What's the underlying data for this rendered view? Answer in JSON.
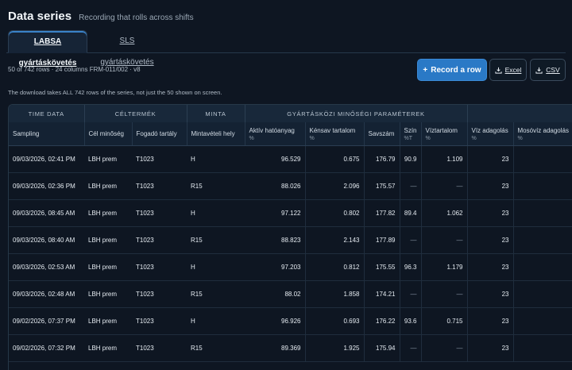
{
  "header": {
    "title": "Data series",
    "subtitle": "Recording that rolls across shifts"
  },
  "tabs": [
    {
      "label": "LABSA gyártáskövetés",
      "active": true
    },
    {
      "label": "SLS gyártáskövetés",
      "active": false
    }
  ],
  "meta": {
    "summary": "50 of 742 rows · 24 columns  FRM-011/002 · v8"
  },
  "note": "The download takes ALL 742 rows of the series, not just the 50 shown on screen.",
  "actions": {
    "record_label": "Record a row",
    "record_icon": "plus-icon",
    "excel_label": "Excel",
    "csv_label": "CSV",
    "download_icon": "download-icon"
  },
  "table": {
    "groups": [
      "TIME DATA",
      "CÉLTERMÉK",
      "MINTA",
      "GYÁRTÁSKÖZI MINŐSÉGI PARAMÉTEREK"
    ],
    "columns": [
      {
        "label": "Sampling",
        "unit": ""
      },
      {
        "label": "Cél minőség",
        "unit": ""
      },
      {
        "label": "Fogadó tartály",
        "unit": ""
      },
      {
        "label": "Mintavételi hely",
        "unit": ""
      },
      {
        "label": "Aktív hatóanyag",
        "unit": "%"
      },
      {
        "label": "Kénsav tartalom",
        "unit": "%"
      },
      {
        "label": "Savszám",
        "unit": ""
      },
      {
        "label": "Szín",
        "unit": "%T"
      },
      {
        "label": "Víztartalom",
        "unit": "%"
      },
      {
        "label": "Víz adagolás",
        "unit": "%"
      },
      {
        "label": "Mosóvíz adagolás",
        "unit": "%"
      }
    ],
    "rows": [
      [
        "09/03/2026, 02:41 PM",
        "LBH prem",
        "T1023",
        "H",
        "96.529",
        "0.675",
        "176.79",
        "90.9",
        "1.109",
        "23",
        ""
      ],
      [
        "09/03/2026, 02:36 PM",
        "LBH prem",
        "T1023",
        "R15",
        "88.026",
        "2.096",
        "175.57",
        "—",
        "—",
        "23",
        ""
      ],
      [
        "09/03/2026, 08:45 AM",
        "LBH prem",
        "T1023",
        "H",
        "97.122",
        "0.802",
        "177.82",
        "89.4",
        "1.062",
        "23",
        ""
      ],
      [
        "09/03/2026, 08:40 AM",
        "LBH prem",
        "T1023",
        "R15",
        "88.823",
        "2.143",
        "177.89",
        "—",
        "—",
        "23",
        ""
      ],
      [
        "09/03/2026, 02:53 AM",
        "LBH prem",
        "T1023",
        "H",
        "97.203",
        "0.812",
        "175.55",
        "96.3",
        "1.179",
        "23",
        ""
      ],
      [
        "09/03/2026, 02:48 AM",
        "LBH prem",
        "T1023",
        "R15",
        "88.02",
        "1.858",
        "174.21",
        "—",
        "—",
        "23",
        ""
      ],
      [
        "09/02/2026, 07:37 PM",
        "LBH prem",
        "T1023",
        "H",
        "96.926",
        "0.693",
        "176.22",
        "93.6",
        "0.715",
        "23",
        ""
      ],
      [
        "09/02/2026, 07:32 PM",
        "LBH prem",
        "T1023",
        "R15",
        "89.369",
        "1.925",
        "175.94",
        "—",
        "—",
        "23",
        ""
      ]
    ]
  },
  "colors": {
    "accent": "#2a79c6",
    "background": "#0e1622"
  }
}
